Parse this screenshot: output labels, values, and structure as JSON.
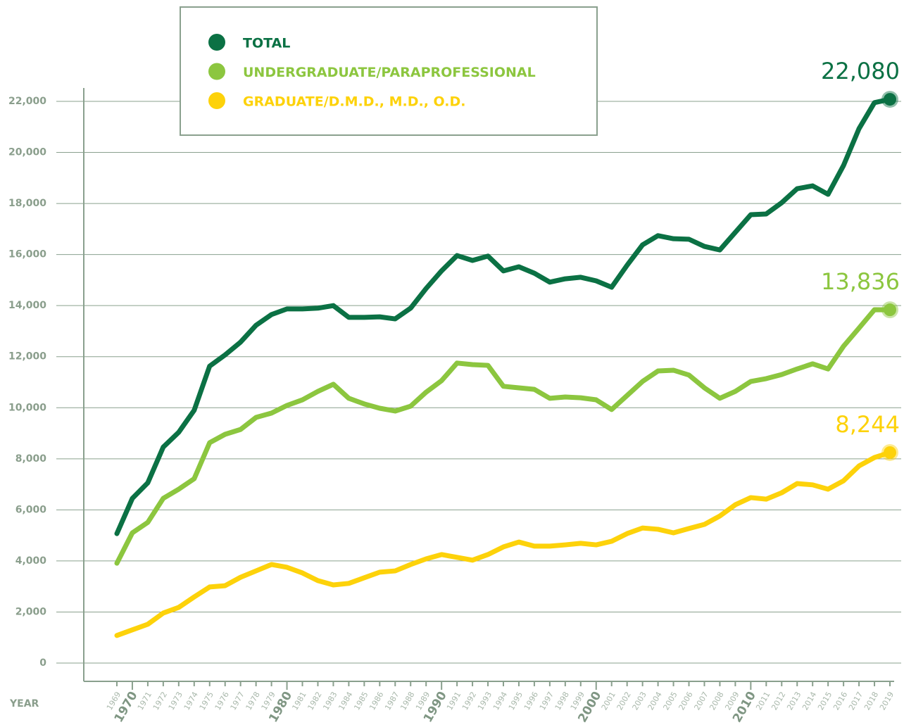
{
  "chart_data": {
    "type": "line",
    "x_label": "YEAR",
    "categories": [
      "1969",
      "1970",
      "1971",
      "1972",
      "1973",
      "1974",
      "1975",
      "1976",
      "1977",
      "1978",
      "1979",
      "1980",
      "1981",
      "1982",
      "1983",
      "1984",
      "1985",
      "1986",
      "1987",
      "1988",
      "1989",
      "1990",
      "1991",
      "1992",
      "1993",
      "1994",
      "1995",
      "1996",
      "1997",
      "1998",
      "1999",
      "2000",
      "2001",
      "2002",
      "2003",
      "2004",
      "2005",
      "2006",
      "2007",
      "2008",
      "2009",
      "2010",
      "2011",
      "2012",
      "2013",
      "2014",
      "2015",
      "2016",
      "2017",
      "2018",
      "2019"
    ],
    "ylim": [
      0,
      22000
    ],
    "yticks": [
      0,
      {
        "value": 2000,
        "label": "2,000"
      },
      {
        "value": 4000,
        "label": "4,000"
      },
      {
        "value": 6000,
        "label": "6,000"
      },
      {
        "value": 8000,
        "label": "8,000"
      },
      {
        "value": 10000,
        "label": "10,000"
      },
      {
        "value": 12000,
        "label": "12,000"
      },
      {
        "value": 14000,
        "label": "14,000"
      },
      {
        "value": 16000,
        "label": "16,000"
      },
      {
        "value": 18000,
        "label": "18,000"
      },
      {
        "value": 20000,
        "label": "20,000"
      },
      {
        "value": 22000,
        "label": "22,000"
      }
    ],
    "grid": true,
    "legend": "top-left",
    "series": [
      {
        "name": "TOTAL",
        "color": "#0b7144",
        "values": [
          5070,
          6450,
          7060,
          8460,
          9040,
          9900,
          11630,
          12070,
          12570,
          13230,
          13650,
          13870,
          13870,
          13900,
          14000,
          13540,
          13540,
          13560,
          13480,
          13900,
          14670,
          15360,
          15960,
          15770,
          15940,
          15360,
          15520,
          15270,
          14920,
          15050,
          15110,
          14970,
          14720,
          15580,
          16380,
          16740,
          16620,
          16600,
          16320,
          16180,
          16870,
          17560,
          17590,
          18030,
          18580,
          18690,
          18360,
          19490,
          20930,
          21950,
          22080
        ],
        "value_labels": [
          null,
          null,
          null,
          null,
          null,
          null,
          null,
          null,
          null,
          null,
          null,
          null,
          null,
          null,
          null,
          null,
          null,
          null,
          null,
          null,
          null,
          null,
          null,
          null,
          null,
          null,
          null,
          null,
          null,
          null,
          null,
          null,
          null,
          null,
          null,
          null,
          null,
          null,
          null,
          null,
          null,
          null,
          null,
          null,
          null,
          null,
          null,
          null,
          null,
          null,
          "22,080"
        ]
      },
      {
        "name": "UNDERGRADUATE/PARAPROFESSIONAL",
        "color": "#8cc63f",
        "values": [
          3910,
          5100,
          5510,
          6450,
          6810,
          7220,
          8630,
          8960,
          9150,
          9620,
          9790,
          10090,
          10310,
          10640,
          10920,
          10370,
          10150,
          9980,
          9870,
          10060,
          10610,
          11060,
          11750,
          11690,
          11660,
          10840,
          10780,
          10720,
          10370,
          10420,
          10390,
          10310,
          9930,
          10480,
          11030,
          11440,
          11470,
          11280,
          10780,
          10370,
          10640,
          11030,
          11140,
          11300,
          11520,
          11720,
          11520,
          12410,
          13120,
          13840,
          13836
        ],
        "value_labels": [
          null,
          null,
          null,
          null,
          null,
          null,
          null,
          null,
          null,
          null,
          null,
          null,
          null,
          null,
          null,
          null,
          null,
          null,
          null,
          null,
          null,
          null,
          null,
          null,
          null,
          null,
          null,
          null,
          null,
          null,
          null,
          null,
          null,
          null,
          null,
          null,
          null,
          null,
          null,
          null,
          null,
          null,
          null,
          null,
          null,
          null,
          null,
          null,
          null,
          null,
          "13,836"
        ]
      },
      {
        "name": "GRADUATE/D.M.D., M.D., O.D.",
        "color": "#fdd20a",
        "values": [
          1080,
          1300,
          1520,
          1960,
          2180,
          2590,
          2980,
          3030,
          3360,
          3610,
          3860,
          3750,
          3530,
          3230,
          3060,
          3120,
          3340,
          3560,
          3610,
          3860,
          4080,
          4250,
          4140,
          4030,
          4250,
          4550,
          4740,
          4580,
          4580,
          4630,
          4690,
          4630,
          4770,
          5070,
          5290,
          5240,
          5100,
          5270,
          5430,
          5760,
          6200,
          6480,
          6420,
          6670,
          7030,
          6980,
          6810,
          7140,
          7720,
          8050,
          8244
        ],
        "value_labels": [
          null,
          null,
          null,
          null,
          null,
          null,
          null,
          null,
          null,
          null,
          null,
          null,
          null,
          null,
          null,
          null,
          null,
          null,
          null,
          null,
          null,
          null,
          null,
          null,
          null,
          null,
          null,
          null,
          null,
          null,
          null,
          null,
          null,
          null,
          null,
          null,
          null,
          null,
          null,
          null,
          null,
          null,
          null,
          null,
          null,
          null,
          null,
          null,
          null,
          null,
          "8,244"
        ]
      }
    ]
  }
}
